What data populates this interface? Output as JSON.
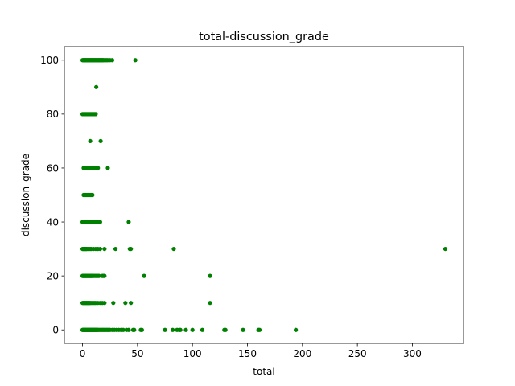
{
  "chart_data": {
    "type": "scatter",
    "title": "total-discussion_grade",
    "xlabel": "total",
    "ylabel": "discussion_grade",
    "xlim": [
      -16.5,
      346.5
    ],
    "ylim": [
      -5,
      105
    ],
    "xticks": [
      0,
      50,
      100,
      150,
      200,
      250,
      300
    ],
    "yticks": [
      0,
      20,
      40,
      60,
      80,
      100
    ],
    "grid": false,
    "marker_color": "#008000",
    "series": [
      {
        "x": [
          0,
          0.5,
          1,
          1.5,
          2,
          2.5,
          3,
          3.5,
          4,
          4.5,
          5,
          5.5,
          6,
          6.5,
          7,
          7.5,
          8,
          8.5,
          9,
          9.5,
          10,
          10.5,
          11,
          11.5,
          12,
          12.5,
          13,
          13.5,
          14,
          14.5,
          15,
          15.5,
          16,
          16.5,
          17,
          17.5,
          18,
          18.5,
          19,
          20,
          21,
          22,
          23,
          25,
          27,
          48,
          12.5,
          0,
          1,
          2,
          3,
          4,
          5,
          6,
          7,
          8,
          9,
          10,
          11,
          12,
          7,
          16.5,
          1,
          2,
          3,
          4,
          5,
          6,
          7,
          8,
          9,
          10,
          11,
          12,
          14,
          23,
          1,
          2,
          3,
          4,
          5,
          6,
          7,
          8,
          9,
          0,
          0.5,
          1,
          1.5,
          2,
          2.5,
          3,
          3.5,
          4,
          4.5,
          5,
          5.5,
          6,
          7,
          8,
          9,
          10,
          11,
          12,
          13,
          14,
          15,
          16,
          42,
          0,
          0.5,
          1,
          1.5,
          2,
          2.5,
          3,
          3.5,
          4,
          5,
          6,
          7,
          8,
          10,
          12,
          14,
          16,
          20,
          30,
          43,
          44,
          83,
          330,
          0,
          0.5,
          1,
          1.5,
          2,
          2.5,
          3,
          3.5,
          4,
          4.5,
          5,
          5.5,
          6,
          6.5,
          7,
          7.5,
          8,
          8.5,
          9,
          10,
          11,
          12,
          13,
          14,
          15,
          18,
          19,
          20,
          56,
          116,
          0,
          0.5,
          1,
          1.5,
          2,
          2.5,
          3,
          3.5,
          4,
          4.5,
          5,
          5.5,
          6,
          6.5,
          7,
          8,
          9,
          10,
          11,
          12,
          14,
          16,
          18,
          20,
          28,
          39,
          44,
          116,
          0,
          0.5,
          1,
          1.5,
          2,
          2.5,
          3,
          3.5,
          4,
          4.5,
          5,
          5.5,
          6,
          6.5,
          7,
          7.5,
          8,
          8.5,
          9,
          9.5,
          10,
          10.5,
          11,
          11.5,
          12,
          12.5,
          13,
          13.5,
          14,
          15,
          16,
          17,
          18,
          19,
          20,
          21,
          22,
          23,
          24,
          25,
          27,
          29,
          31,
          33,
          35,
          37,
          40,
          42,
          46,
          47,
          53,
          54,
          75,
          82,
          86,
          88,
          89,
          94,
          100,
          109,
          129,
          130,
          146,
          160,
          161,
          194
        ],
        "y": [
          100,
          100,
          100,
          100,
          100,
          100,
          100,
          100,
          100,
          100,
          100,
          100,
          100,
          100,
          100,
          100,
          100,
          100,
          100,
          100,
          100,
          100,
          100,
          100,
          100,
          100,
          100,
          100,
          100,
          100,
          100,
          100,
          100,
          100,
          100,
          100,
          100,
          100,
          100,
          100,
          100,
          100,
          100,
          100,
          100,
          100,
          90,
          80,
          80,
          80,
          80,
          80,
          80,
          80,
          80,
          80,
          80,
          80,
          80,
          80,
          70,
          70,
          60,
          60,
          60,
          60,
          60,
          60,
          60,
          60,
          60,
          60,
          60,
          60,
          60,
          60,
          50,
          50,
          50,
          50,
          50,
          50,
          50,
          50,
          50,
          40,
          40,
          40,
          40,
          40,
          40,
          40,
          40,
          40,
          40,
          40,
          40,
          40,
          40,
          40,
          40,
          40,
          40,
          40,
          40,
          40,
          40,
          40,
          40,
          30,
          30,
          30,
          30,
          30,
          30,
          30,
          30,
          30,
          30,
          30,
          30,
          30,
          30,
          30,
          30,
          30,
          30,
          30,
          30,
          30,
          30,
          30,
          20,
          20,
          20,
          20,
          20,
          20,
          20,
          20,
          20,
          20,
          20,
          20,
          20,
          20,
          20,
          20,
          20,
          20,
          20,
          20,
          20,
          20,
          20,
          20,
          20,
          20,
          20,
          20,
          20,
          20,
          10,
          10,
          10,
          10,
          10,
          10,
          10,
          10,
          10,
          10,
          10,
          10,
          10,
          10,
          10,
          10,
          10,
          10,
          10,
          10,
          10,
          10,
          10,
          10,
          10,
          10,
          10,
          10,
          0,
          0,
          0,
          0,
          0,
          0,
          0,
          0,
          0,
          0,
          0,
          0,
          0,
          0,
          0,
          0,
          0,
          0,
          0,
          0,
          0,
          0,
          0,
          0,
          0,
          0,
          0,
          0,
          0,
          0,
          0,
          0,
          0,
          0,
          0,
          0,
          0,
          0,
          0,
          0,
          0,
          0,
          0,
          0,
          0,
          0,
          0,
          0,
          0,
          0,
          0,
          0,
          0,
          0,
          0,
          0,
          0,
          0,
          0,
          0,
          0,
          0,
          0,
          0,
          0,
          0
        ]
      }
    ]
  }
}
